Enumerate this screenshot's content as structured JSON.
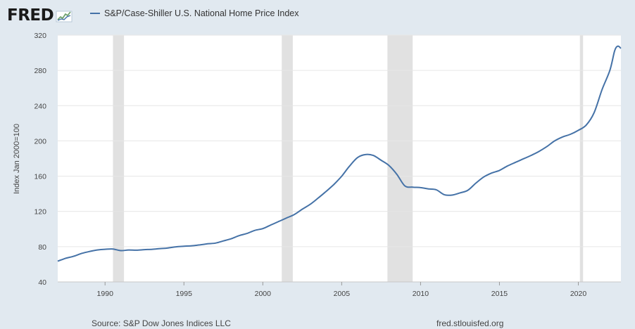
{
  "brand": {
    "logo_text": "FRED",
    "logo_graph_icon": "trend-graph-icon"
  },
  "colors": {
    "series": "#4572a7",
    "recession": "#e1e1e1",
    "grid": "#e6e6e6",
    "background": "#e1e9f0",
    "plot": "#ffffff"
  },
  "footer": {
    "source": "Source: S&P Dow Jones Indices LLC",
    "url": "fred.stlouisfed.org"
  },
  "chart_data": {
    "type": "line",
    "title": "",
    "xlabel": "",
    "ylabel": "Index Jan 2000=100",
    "xlim": [
      1987.0,
      2022.7
    ],
    "ylim": [
      40,
      320
    ],
    "grid": true,
    "legend_position": "top-left",
    "x_ticks": [
      1990,
      1995,
      2000,
      2005,
      2010,
      2015,
      2020
    ],
    "y_ticks": [
      40,
      80,
      120,
      160,
      200,
      240,
      280,
      320
    ],
    "recessions": [
      [
        1990.5,
        1991.2
      ],
      [
        2001.2,
        2001.9
      ],
      [
        2007.9,
        2009.5
      ],
      [
        2020.1,
        2020.3
      ]
    ],
    "series": [
      {
        "name": "S&P/Case-Shiller U.S. National Home Price Index",
        "x": [
          1987.0,
          1987.5,
          1988.0,
          1988.5,
          1989.0,
          1989.5,
          1990.0,
          1990.5,
          1991.0,
          1991.5,
          1992.0,
          1992.5,
          1993.0,
          1993.5,
          1994.0,
          1994.5,
          1995.0,
          1995.5,
          1996.0,
          1996.5,
          1997.0,
          1997.5,
          1998.0,
          1998.5,
          1999.0,
          1999.5,
          2000.0,
          2000.5,
          2001.0,
          2001.5,
          2002.0,
          2002.5,
          2003.0,
          2003.5,
          2004.0,
          2004.5,
          2005.0,
          2005.5,
          2006.0,
          2006.5,
          2007.0,
          2007.5,
          2008.0,
          2008.5,
          2009.0,
          2009.5,
          2010.0,
          2010.5,
          2011.0,
          2011.5,
          2012.0,
          2012.5,
          2013.0,
          2013.5,
          2014.0,
          2014.5,
          2015.0,
          2015.5,
          2016.0,
          2016.5,
          2017.0,
          2017.5,
          2018.0,
          2018.5,
          2019.0,
          2019.5,
          2020.0,
          2020.5,
          2021.0,
          2021.5,
          2022.0,
          2022.3,
          2022.5,
          2022.7
        ],
        "y": [
          63.5,
          66.8,
          69.0,
          72.2,
          74.5,
          76.2,
          77.0,
          77.3,
          75.5,
          76.2,
          76.0,
          76.6,
          77.0,
          77.8,
          78.5,
          79.8,
          80.5,
          81.0,
          82.0,
          83.2,
          84.0,
          86.5,
          89.0,
          92.5,
          95.0,
          98.5,
          100.5,
          104.5,
          108.5,
          112.5,
          116.5,
          122.5,
          128.0,
          135.0,
          142.5,
          150.5,
          160.0,
          171.5,
          181.0,
          184.5,
          183.5,
          178.0,
          172.0,
          162.0,
          149.0,
          147.5,
          147.0,
          145.5,
          144.5,
          139.0,
          138.5,
          141.0,
          144.0,
          152.0,
          159.0,
          163.5,
          166.5,
          171.5,
          175.5,
          179.5,
          183.5,
          188.0,
          193.5,
          200.0,
          204.5,
          207.5,
          212.0,
          218.0,
          232.0,
          258.0,
          280.0,
          302.0,
          307.5,
          305.0
        ]
      }
    ]
  }
}
